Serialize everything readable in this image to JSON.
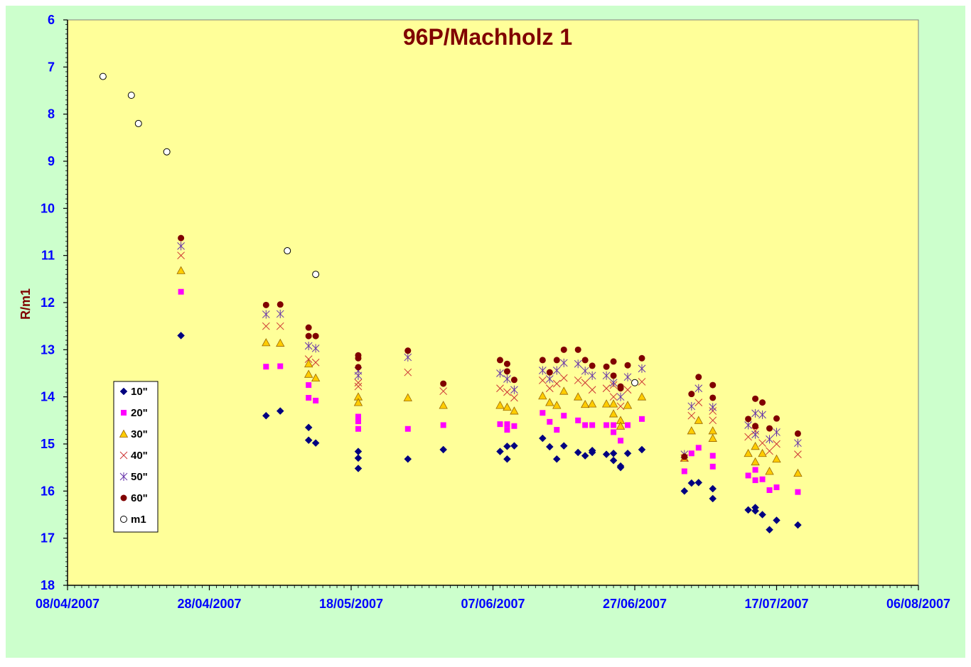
{
  "chart_data": {
    "type": "scatter",
    "title": "96P/Machholz 1",
    "xlabel": "",
    "ylabel": "R/m1",
    "y_inverted": true,
    "ylim": [
      6,
      18
    ],
    "yticks": [
      6,
      7,
      8,
      9,
      10,
      11,
      12,
      13,
      14,
      15,
      16,
      17,
      18
    ],
    "xlim": [
      "2007-04-08",
      "2007-08-06"
    ],
    "xticks": [
      "08/04/2007",
      "28/04/2007",
      "18/05/2007",
      "07/06/2007",
      "27/06/2007",
      "17/07/2007",
      "06/08/2007"
    ],
    "grid": false,
    "legend_position": "left-bottom",
    "colors": {
      "figure_background": "#ccffcc",
      "plot_background": "#ffff99"
    },
    "series": [
      {
        "name": "10\"",
        "marker": "diamond",
        "color": "#000080",
        "points": [
          [
            "2007-04-24",
            12.7
          ],
          [
            "2007-05-06",
            14.4
          ],
          [
            "2007-05-08",
            14.3
          ],
          [
            "2007-05-12",
            14.65
          ],
          [
            "2007-05-12",
            14.92
          ],
          [
            "2007-05-13",
            14.98
          ],
          [
            "2007-05-19",
            15.16
          ],
          [
            "2007-05-19",
            15.3
          ],
          [
            "2007-05-19",
            15.52
          ],
          [
            "2007-05-26",
            15.32
          ],
          [
            "2007-05-31",
            15.12
          ],
          [
            "2007-06-08",
            15.16
          ],
          [
            "2007-06-09",
            15.05
          ],
          [
            "2007-06-09",
            15.32
          ],
          [
            "2007-06-10",
            15.04
          ],
          [
            "2007-06-14",
            14.88
          ],
          [
            "2007-06-15",
            15.06
          ],
          [
            "2007-06-16",
            15.32
          ],
          [
            "2007-06-17",
            15.04
          ],
          [
            "2007-06-19",
            15.18
          ],
          [
            "2007-06-20",
            15.25
          ],
          [
            "2007-06-21",
            15.14
          ],
          [
            "2007-06-21",
            15.18
          ],
          [
            "2007-06-23",
            15.22
          ],
          [
            "2007-06-24",
            15.2
          ],
          [
            "2007-06-24",
            15.35
          ],
          [
            "2007-06-25",
            15.47
          ],
          [
            "2007-06-25",
            15.5
          ],
          [
            "2007-06-26",
            15.2
          ],
          [
            "2007-06-28",
            15.12
          ],
          [
            "2007-07-04",
            16.0
          ],
          [
            "2007-07-05",
            15.83
          ],
          [
            "2007-07-06",
            15.82
          ],
          [
            "2007-07-08",
            15.95
          ],
          [
            "2007-07-08",
            16.16
          ],
          [
            "2007-07-13",
            16.4
          ],
          [
            "2007-07-14",
            16.42
          ],
          [
            "2007-07-14",
            16.35
          ],
          [
            "2007-07-15",
            16.5
          ],
          [
            "2007-07-16",
            16.82
          ],
          [
            "2007-07-17",
            16.62
          ],
          [
            "2007-07-20",
            16.72
          ]
        ]
      },
      {
        "name": "20\"",
        "marker": "square",
        "color": "#ff00ff",
        "points": [
          [
            "2007-04-24",
            11.77
          ],
          [
            "2007-05-06",
            13.36
          ],
          [
            "2007-05-08",
            13.35
          ],
          [
            "2007-05-12",
            13.75
          ],
          [
            "2007-05-12",
            14.02
          ],
          [
            "2007-05-13",
            14.08
          ],
          [
            "2007-05-19",
            14.42
          ],
          [
            "2007-05-19",
            14.52
          ],
          [
            "2007-05-19",
            14.68
          ],
          [
            "2007-05-26",
            14.68
          ],
          [
            "2007-05-31",
            14.6
          ],
          [
            "2007-06-08",
            14.58
          ],
          [
            "2007-06-09",
            14.58
          ],
          [
            "2007-06-09",
            14.7
          ],
          [
            "2007-06-10",
            14.62
          ],
          [
            "2007-06-14",
            14.34
          ],
          [
            "2007-06-15",
            14.53
          ],
          [
            "2007-06-16",
            14.7
          ],
          [
            "2007-06-17",
            14.4
          ],
          [
            "2007-06-19",
            14.5
          ],
          [
            "2007-06-20",
            14.6
          ],
          [
            "2007-06-21",
            14.6
          ],
          [
            "2007-06-23",
            14.6
          ],
          [
            "2007-06-24",
            14.6
          ],
          [
            "2007-06-24",
            14.75
          ],
          [
            "2007-06-25",
            14.93
          ],
          [
            "2007-06-26",
            14.6
          ],
          [
            "2007-06-28",
            14.47
          ],
          [
            "2007-07-04",
            15.58
          ],
          [
            "2007-07-05",
            15.2
          ],
          [
            "2007-07-06",
            15.08
          ],
          [
            "2007-07-08",
            15.25
          ],
          [
            "2007-07-08",
            15.48
          ],
          [
            "2007-07-13",
            15.67
          ],
          [
            "2007-07-14",
            15.77
          ],
          [
            "2007-07-14",
            15.55
          ],
          [
            "2007-07-15",
            15.75
          ],
          [
            "2007-07-16",
            15.98
          ],
          [
            "2007-07-17",
            15.92
          ],
          [
            "2007-07-20",
            16.02
          ]
        ]
      },
      {
        "name": "30\"",
        "marker": "triangle",
        "color": "#ffcc00",
        "points": [
          [
            "2007-04-24",
            11.32
          ],
          [
            "2007-05-06",
            12.85
          ],
          [
            "2007-05-08",
            12.86
          ],
          [
            "2007-05-12",
            13.3
          ],
          [
            "2007-05-12",
            13.52
          ],
          [
            "2007-05-13",
            13.6
          ],
          [
            "2007-05-19",
            14.0
          ],
          [
            "2007-05-19",
            14.12
          ],
          [
            "2007-05-26",
            14.02
          ],
          [
            "2007-05-31",
            14.18
          ],
          [
            "2007-06-08",
            14.18
          ],
          [
            "2007-06-09",
            14.22
          ],
          [
            "2007-06-10",
            14.3
          ],
          [
            "2007-06-14",
            13.98
          ],
          [
            "2007-06-15",
            14.12
          ],
          [
            "2007-06-16",
            14.18
          ],
          [
            "2007-06-17",
            13.88
          ],
          [
            "2007-06-19",
            14.0
          ],
          [
            "2007-06-20",
            14.16
          ],
          [
            "2007-06-21",
            14.15
          ],
          [
            "2007-06-23",
            14.15
          ],
          [
            "2007-06-24",
            14.15
          ],
          [
            "2007-06-24",
            14.36
          ],
          [
            "2007-06-25",
            14.5
          ],
          [
            "2007-06-25",
            14.62
          ],
          [
            "2007-06-26",
            14.18
          ],
          [
            "2007-06-28",
            14.0
          ],
          [
            "2007-07-04",
            15.3
          ],
          [
            "2007-07-05",
            14.72
          ],
          [
            "2007-07-06",
            14.5
          ],
          [
            "2007-07-08",
            14.72
          ],
          [
            "2007-07-08",
            14.88
          ],
          [
            "2007-07-13",
            15.2
          ],
          [
            "2007-07-14",
            15.38
          ],
          [
            "2007-07-14",
            15.05
          ],
          [
            "2007-07-15",
            15.2
          ],
          [
            "2007-07-16",
            15.58
          ],
          [
            "2007-07-17",
            15.32
          ],
          [
            "2007-07-20",
            15.62
          ]
        ]
      },
      {
        "name": "40\"",
        "marker": "x",
        "color": "#cc3333",
        "points": [
          [
            "2007-04-24",
            11.0
          ],
          [
            "2007-05-06",
            12.5
          ],
          [
            "2007-05-08",
            12.5
          ],
          [
            "2007-05-12",
            13.2
          ],
          [
            "2007-05-13",
            13.27
          ],
          [
            "2007-05-19",
            13.7
          ],
          [
            "2007-05-19",
            13.78
          ],
          [
            "2007-05-26",
            13.48
          ],
          [
            "2007-05-31",
            13.88
          ],
          [
            "2007-06-08",
            13.82
          ],
          [
            "2007-06-09",
            13.9
          ],
          [
            "2007-06-10",
            14.02
          ],
          [
            "2007-06-14",
            13.65
          ],
          [
            "2007-06-15",
            13.82
          ],
          [
            "2007-06-16",
            13.72
          ],
          [
            "2007-06-17",
            13.6
          ],
          [
            "2007-06-19",
            13.65
          ],
          [
            "2007-06-20",
            13.7
          ],
          [
            "2007-06-21",
            13.85
          ],
          [
            "2007-06-23",
            13.82
          ],
          [
            "2007-06-24",
            13.75
          ],
          [
            "2007-06-24",
            14.0
          ],
          [
            "2007-06-25",
            14.2
          ],
          [
            "2007-06-26",
            13.85
          ],
          [
            "2007-06-28",
            13.68
          ],
          [
            "2007-07-04",
            15.3
          ],
          [
            "2007-07-05",
            14.4
          ],
          [
            "2007-07-06",
            14.12
          ],
          [
            "2007-07-08",
            14.3
          ],
          [
            "2007-07-08",
            14.5
          ],
          [
            "2007-07-13",
            14.85
          ],
          [
            "2007-07-14",
            14.72
          ],
          [
            "2007-07-15",
            14.98
          ],
          [
            "2007-07-16",
            15.15
          ],
          [
            "2007-07-17",
            15.0
          ],
          [
            "2007-07-20",
            15.22
          ]
        ]
      },
      {
        "name": "50\"",
        "marker": "star",
        "color": "#6633aa",
        "points": [
          [
            "2007-04-24",
            10.8
          ],
          [
            "2007-05-06",
            12.25
          ],
          [
            "2007-05-08",
            12.24
          ],
          [
            "2007-05-12",
            12.92
          ],
          [
            "2007-05-13",
            12.97
          ],
          [
            "2007-05-19",
            13.45
          ],
          [
            "2007-05-19",
            13.55
          ],
          [
            "2007-05-26",
            13.16
          ],
          [
            "2007-06-08",
            13.5
          ],
          [
            "2007-06-09",
            13.62
          ],
          [
            "2007-06-10",
            13.85
          ],
          [
            "2007-06-14",
            13.44
          ],
          [
            "2007-06-15",
            13.62
          ],
          [
            "2007-06-16",
            13.44
          ],
          [
            "2007-06-17",
            13.28
          ],
          [
            "2007-06-19",
            13.3
          ],
          [
            "2007-06-20",
            13.45
          ],
          [
            "2007-06-21",
            13.55
          ],
          [
            "2007-06-23",
            13.55
          ],
          [
            "2007-06-24",
            13.7
          ],
          [
            "2007-06-25",
            14.0
          ],
          [
            "2007-06-26",
            13.58
          ],
          [
            "2007-06-28",
            13.4
          ],
          [
            "2007-07-04",
            15.22
          ],
          [
            "2007-07-05",
            14.2
          ],
          [
            "2007-07-06",
            13.82
          ],
          [
            "2007-07-08",
            14.22
          ],
          [
            "2007-07-13",
            14.6
          ],
          [
            "2007-07-14",
            14.8
          ],
          [
            "2007-07-14",
            14.35
          ],
          [
            "2007-07-15",
            14.38
          ],
          [
            "2007-07-16",
            14.9
          ],
          [
            "2007-07-17",
            14.75
          ],
          [
            "2007-07-20",
            14.98
          ]
        ]
      },
      {
        "name": "60\"",
        "marker": "circle-filled",
        "color": "#800000",
        "points": [
          [
            "2007-04-24",
            10.63
          ],
          [
            "2007-05-06",
            12.05
          ],
          [
            "2007-05-08",
            12.04
          ],
          [
            "2007-05-12",
            12.53
          ],
          [
            "2007-05-12",
            12.71
          ],
          [
            "2007-05-13",
            12.71
          ],
          [
            "2007-05-19",
            13.12
          ],
          [
            "2007-05-19",
            13.18
          ],
          [
            "2007-05-19",
            13.37
          ],
          [
            "2007-05-26",
            13.02
          ],
          [
            "2007-05-31",
            13.72
          ],
          [
            "2007-06-08",
            13.22
          ],
          [
            "2007-06-09",
            13.3
          ],
          [
            "2007-06-09",
            13.46
          ],
          [
            "2007-06-10",
            13.64
          ],
          [
            "2007-06-14",
            13.22
          ],
          [
            "2007-06-15",
            13.48
          ],
          [
            "2007-06-16",
            13.22
          ],
          [
            "2007-06-17",
            13.0
          ],
          [
            "2007-06-19",
            13.0
          ],
          [
            "2007-06-20",
            13.22
          ],
          [
            "2007-06-21",
            13.34
          ],
          [
            "2007-06-23",
            13.36
          ],
          [
            "2007-06-24",
            13.25
          ],
          [
            "2007-06-24",
            13.55
          ],
          [
            "2007-06-25",
            13.78
          ],
          [
            "2007-06-25",
            13.82
          ],
          [
            "2007-06-26",
            13.33
          ],
          [
            "2007-06-28",
            13.18
          ],
          [
            "2007-07-04",
            15.27
          ],
          [
            "2007-07-05",
            13.94
          ],
          [
            "2007-07-06",
            13.58
          ],
          [
            "2007-07-08",
            13.75
          ],
          [
            "2007-07-08",
            14.02
          ],
          [
            "2007-07-13",
            14.47
          ],
          [
            "2007-07-14",
            14.62
          ],
          [
            "2007-07-14",
            14.04
          ],
          [
            "2007-07-15",
            14.12
          ],
          [
            "2007-07-16",
            14.67
          ],
          [
            "2007-07-17",
            14.46
          ],
          [
            "2007-07-20",
            14.78
          ]
        ]
      },
      {
        "name": "m1",
        "marker": "circle-open",
        "color": "#000000",
        "points": [
          [
            "2007-04-13",
            7.2
          ],
          [
            "2007-04-17",
            7.6
          ],
          [
            "2007-04-18",
            8.2
          ],
          [
            "2007-04-22",
            8.8
          ],
          [
            "2007-05-09",
            10.9
          ],
          [
            "2007-05-13",
            11.4
          ],
          [
            "2007-06-27",
            13.7
          ]
        ]
      }
    ]
  }
}
